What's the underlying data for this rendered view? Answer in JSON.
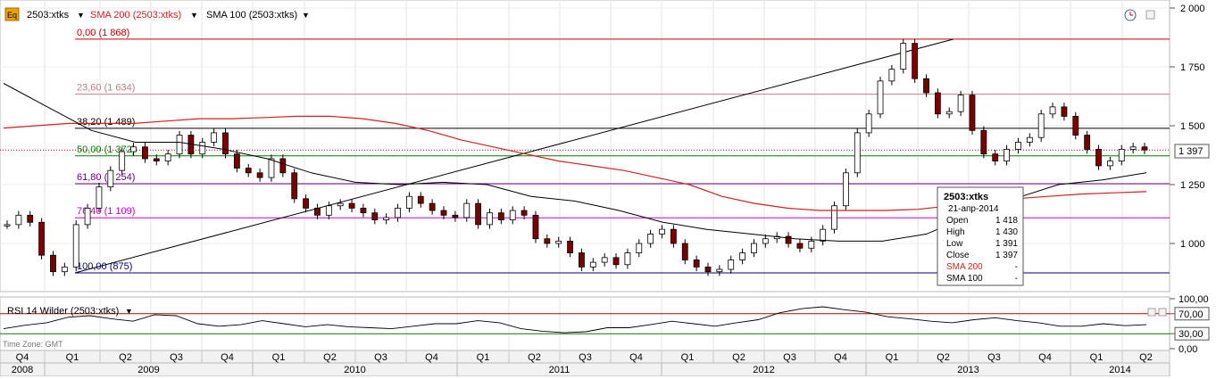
{
  "header": {
    "badge": "Eq",
    "instrument": "2503:xtks",
    "sma200_label": "SMA 200 (2503:xtks)",
    "sma100_label": "SMA 100 (2503:xtks)"
  },
  "rsi_panel": {
    "label": "RSI 14 Wilder (2503:xtks)",
    "timezone": "Time Zone: GMT",
    "tick_labels": [
      "100,00",
      "70,00",
      "30,00",
      "0,00"
    ]
  },
  "price_axis": {
    "labels": [
      "2 000",
      "1 750",
      "1 500",
      "1 250",
      "1 000"
    ],
    "last_price": "1 397"
  },
  "colors": {
    "sma200": "#d42020",
    "sma100": "#000000",
    "fib_high": "#c00000",
    "fib_mid": "#c08080",
    "fib_50": "#008000",
    "fib_618": "#6a0080",
    "fib_764": "#cc00cc",
    "fib_low": "#000080",
    "candle_down": "#7a0000",
    "rsi_line": "#000000"
  },
  "tooltip": {
    "title": "2503:xtks",
    "date": "21-апр-2014",
    "rows": [
      {
        "label": "Open",
        "value": "1 418"
      },
      {
        "label": "High",
        "value": "1 430"
      },
      {
        "label": "Low",
        "value": "1 391"
      },
      {
        "label": "Close",
        "value": "1 397"
      },
      {
        "label": "SMA 200",
        "value": "-"
      },
      {
        "label": "SMA 100",
        "value": "-"
      }
    ]
  },
  "chart_data": {
    "type": "candlestick",
    "instrument": "2503:xtks",
    "ylim": [
      790,
      2000
    ],
    "fibonacci": [
      {
        "label": "0,00 (1 868)",
        "value": 1868
      },
      {
        "label": "23,60 (1 634)",
        "value": 1634
      },
      {
        "label": "38,20 (1 489)",
        "value": 1489
      },
      {
        "label": "50,00 (1 372)",
        "value": 1372
      },
      {
        "label": "61,80 (1 254)",
        "value": 1254
      },
      {
        "label": "76,40 (1 109)",
        "value": 1109
      },
      {
        "label": "100,00 (875)",
        "value": 875
      }
    ],
    "quarters": [
      "Q4",
      "Q1",
      "Q2",
      "Q3",
      "Q4",
      "Q1",
      "Q2",
      "Q3",
      "Q4",
      "Q1",
      "Q2",
      "Q3",
      "Q4",
      "Q1",
      "Q2",
      "Q3",
      "Q4",
      "Q1",
      "Q2",
      "Q3",
      "Q4",
      "Q1",
      "Q2"
    ],
    "years": [
      "2008",
      "2009",
      "2010",
      "2011",
      "2012",
      "2013",
      "2014"
    ],
    "price_close": [
      1080,
      1120,
      1090,
      950,
      880,
      900,
      1080,
      1150,
      1240,
      1310,
      1390,
      1410,
      1360,
      1350,
      1380,
      1460,
      1380,
      1430,
      1470,
      1380,
      1320,
      1300,
      1280,
      1360,
      1300,
      1190,
      1150,
      1120,
      1160,
      1170,
      1150,
      1130,
      1100,
      1110,
      1150,
      1200,
      1170,
      1140,
      1120,
      1110,
      1170,
      1080,
      1130,
      1100,
      1140,
      1120,
      1020,
      1000,
      1010,
      960,
      900,
      920,
      940,
      910,
      960,
      1000,
      1040,
      1060,
      1000,
      930,
      900,
      880,
      890,
      930,
      960,
      1000,
      1020,
      1030,
      1000,
      980,
      1010,
      1060,
      1160,
      1300,
      1470,
      1550,
      1690,
      1740,
      1850,
      1700,
      1640,
      1550,
      1560,
      1630,
      1480,
      1380,
      1350,
      1400,
      1430,
      1450,
      1550,
      1580,
      1540,
      1460,
      1400,
      1330,
      1350,
      1400,
      1410,
      1397
    ],
    "sma200": [
      1490,
      1500,
      1510,
      1510,
      1510,
      1520,
      1530,
      1530,
      1535,
      1540,
      1540,
      1530,
      1510,
      1480,
      1440,
      1410,
      1380,
      1350,
      1330,
      1310,
      1280,
      1250,
      1200,
      1170,
      1150,
      1140,
      1140,
      1140,
      1145,
      1160,
      1175,
      1190,
      1200,
      1210,
      1215,
      1220
    ],
    "sma100": [
      1680,
      1580,
      1480,
      1430,
      1430,
      1400,
      1360,
      1300,
      1260,
      1250,
      1260,
      1250,
      1200,
      1180,
      1140,
      1090,
      1060,
      1040,
      1020,
      1010,
      1010,
      1040,
      1120,
      1190,
      1250,
      1270,
      1300
    ],
    "rsi": [
      40,
      47,
      52,
      63,
      66,
      60,
      55,
      68,
      66,
      50,
      45,
      48,
      56,
      50,
      44,
      48,
      44,
      42,
      40,
      45,
      50,
      50,
      56,
      52,
      40,
      35,
      32,
      34,
      42,
      42,
      48,
      55,
      50,
      45,
      52,
      58,
      72,
      80,
      84,
      78,
      73,
      64,
      60,
      55,
      52,
      58,
      62,
      56,
      52,
      45,
      45,
      50,
      46,
      48
    ],
    "rsi_levels": [
      70,
      30
    ],
    "rsi_ylim": [
      0,
      100
    ],
    "trendline": [
      875,
      1868
    ]
  }
}
